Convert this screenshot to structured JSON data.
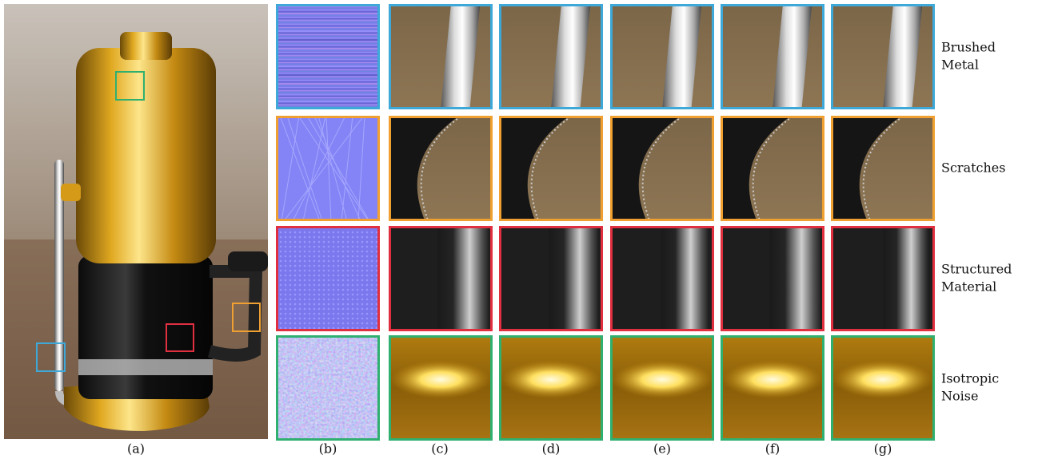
{
  "panels": {
    "labels": [
      "(a)",
      "(b)",
      "(c)",
      "(d)",
      "(e)",
      "(f)",
      "(g)"
    ]
  },
  "rows": [
    {
      "label_lines": [
        "Brushed",
        "Metal"
      ]
    },
    {
      "label_lines": [
        "Scratches"
      ]
    },
    {
      "label_lines": [
        "Structured",
        "Material"
      ]
    },
    {
      "label_lines": [
        "Isotropic",
        "Noise"
      ]
    }
  ]
}
